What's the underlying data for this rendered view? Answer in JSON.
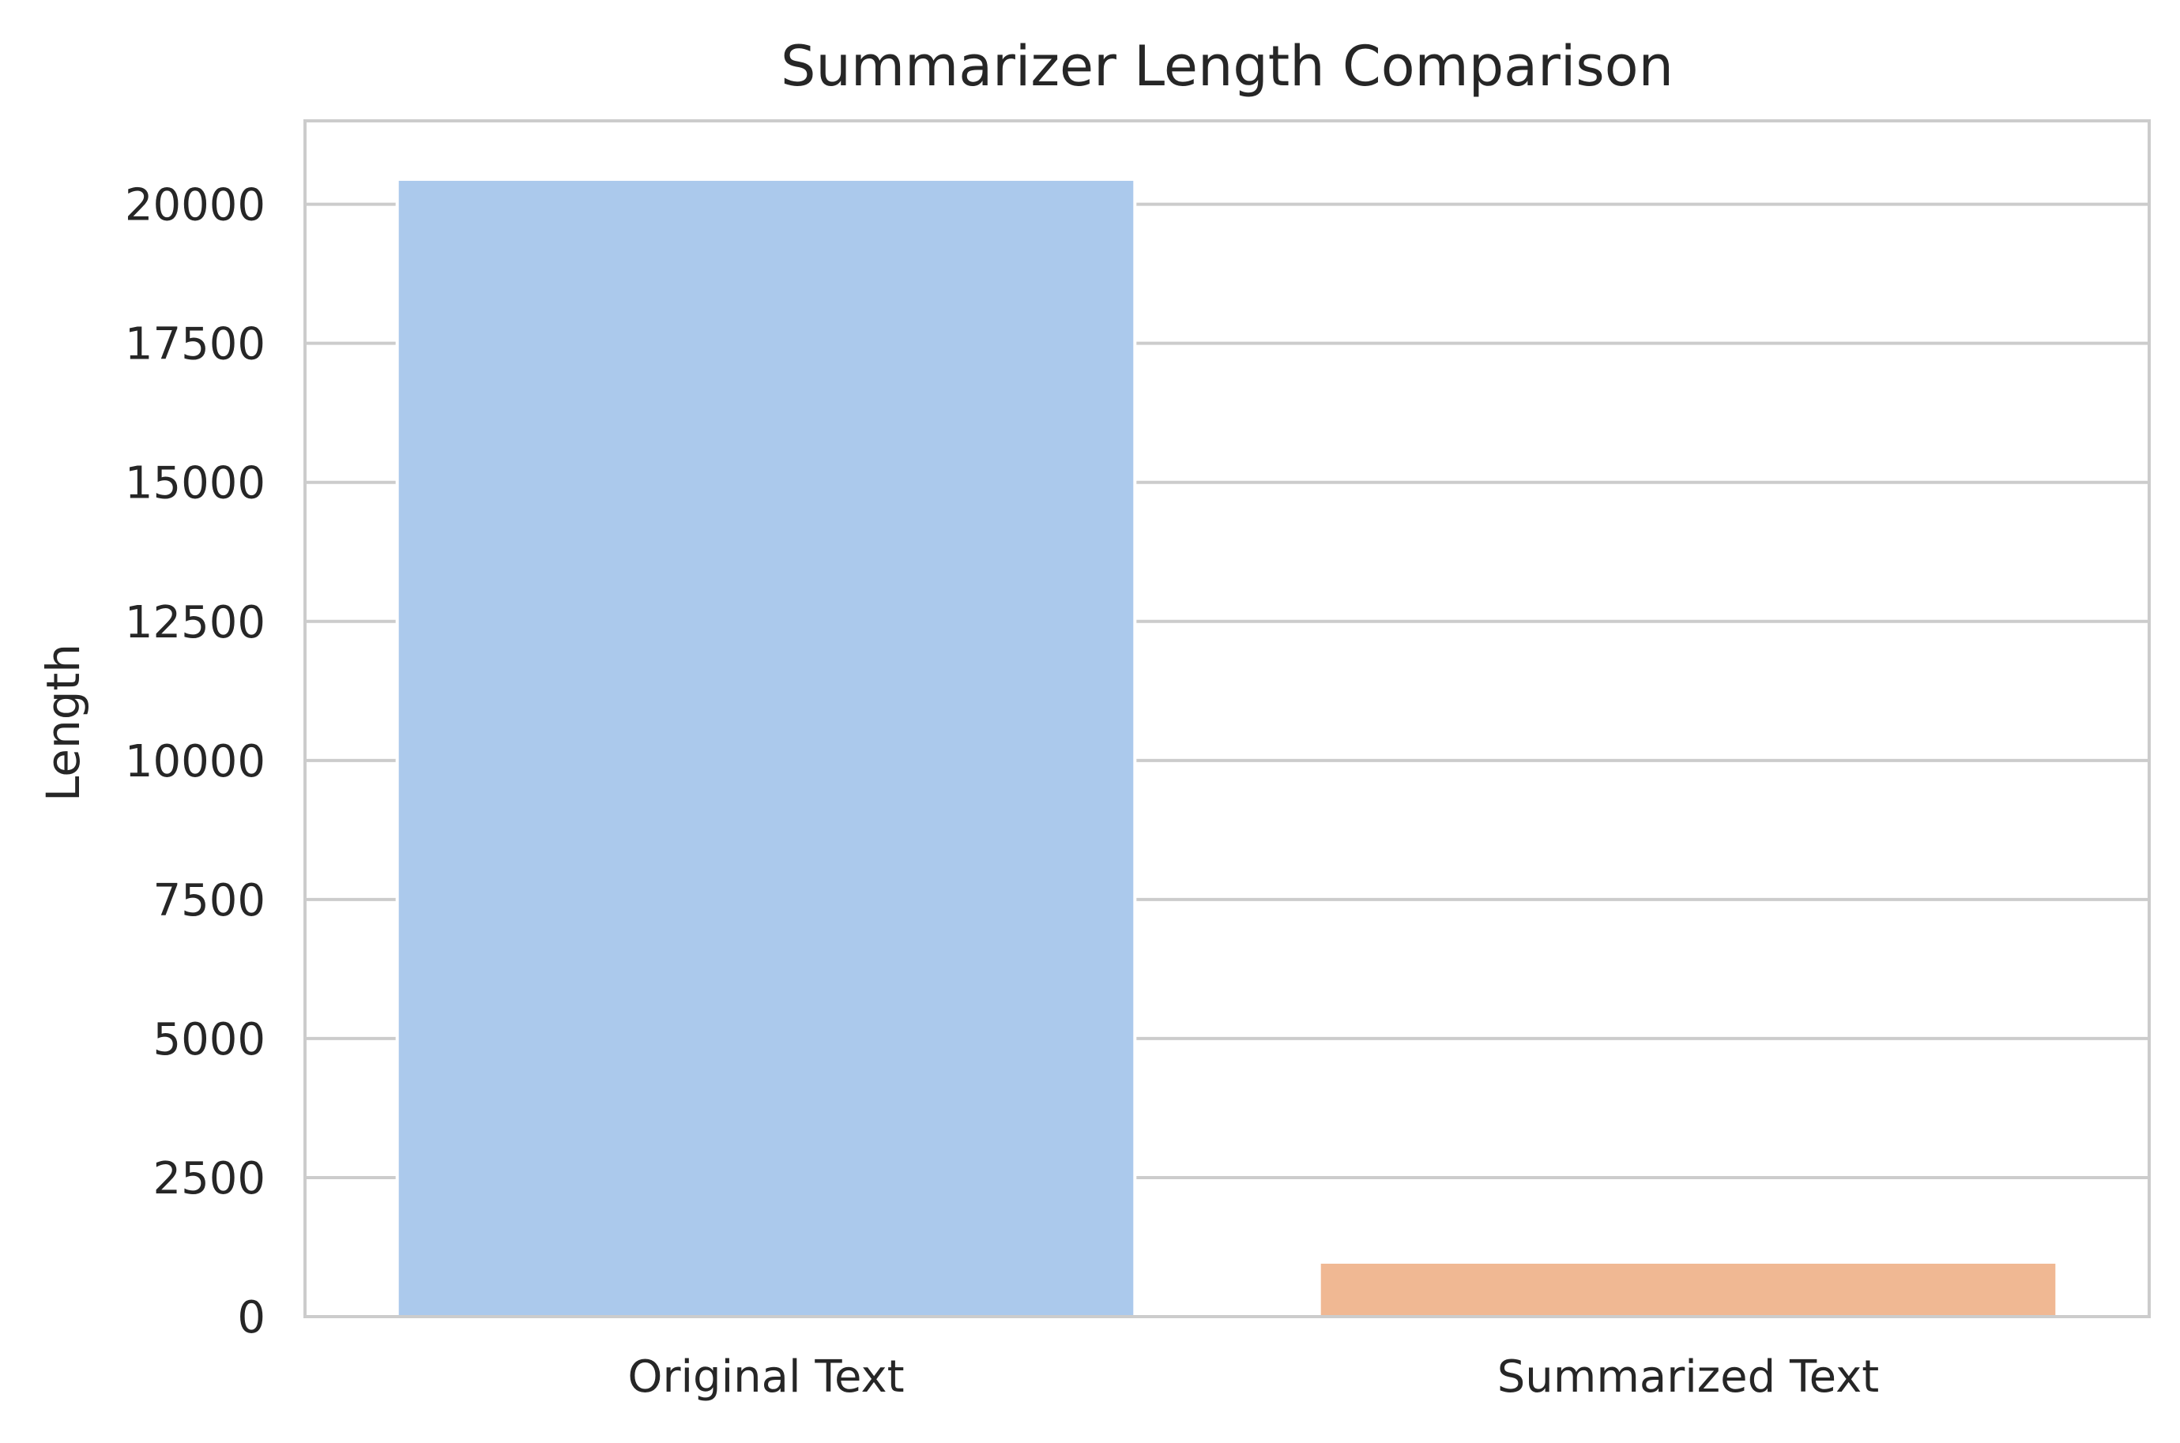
{
  "chart_data": {
    "type": "bar",
    "title": "Summarizer Length Comparison",
    "xlabel": "",
    "ylabel": "Length",
    "categories": [
      "Original Text",
      "Summarized Text"
    ],
    "values": [
      20450,
      980
    ],
    "colors": [
      "#abc9ec",
      "#f0b893"
    ],
    "ylim": [
      0,
      21500
    ],
    "yticks": [
      0,
      2500,
      5000,
      7500,
      10000,
      12500,
      15000,
      17500,
      20000
    ],
    "ytick_labels": [
      "0",
      "2500",
      "5000",
      "7500",
      "10000",
      "12500",
      "15000",
      "17500",
      "20000"
    ],
    "grid": true,
    "grid_axis": "y",
    "legend": "none"
  }
}
